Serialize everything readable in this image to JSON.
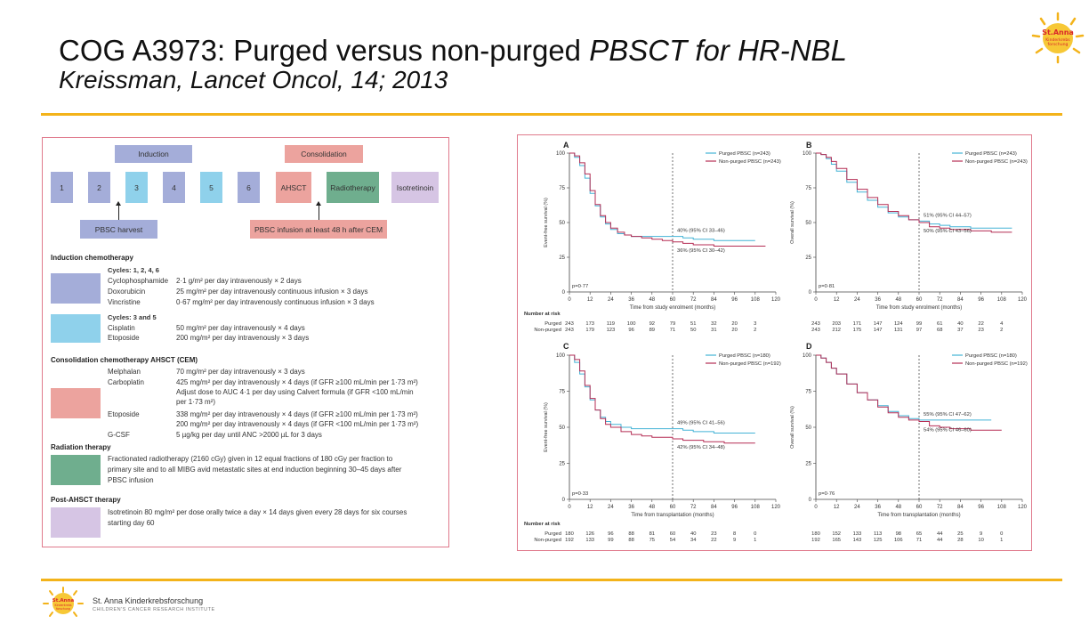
{
  "header": {
    "title_plain": "COG A3973: Purged versus non-purged ",
    "title_italic": "PBSCT for HR-NBL",
    "subtitle": "Kreissman, Lancet Oncol, 14;  2013"
  },
  "colors": {
    "accent": "#f3b31a",
    "purged": "#43b3d6",
    "nonpurged": "#b52d54",
    "panel_border": "#e07a8c"
  },
  "logo": {
    "text1": "St.Anna",
    "text2": "Kinderkrebs",
    "text3": "forschung"
  },
  "schema": {
    "induction_label": "Induction",
    "consolidation_label": "Consolidation",
    "cycles": [
      "1",
      "2",
      "3",
      "4",
      "5",
      "6"
    ],
    "ahsct": "AHSCT",
    "radiotherapy": "Radiotherapy",
    "isotretinoin": "Isotretinoin",
    "pbsc_harvest": "PBSC harvest",
    "pbsc_infusion": "PBSC infusion at least 48 h after CEM"
  },
  "regimen": {
    "induction_title": "Induction chemotherapy",
    "cycles_a": "Cycles: 1, 2, 4, 6",
    "drugs_a": [
      {
        "drug": "Cyclophosphamide",
        "dose": "2·1 g/m² per day intravenously × 2 days"
      },
      {
        "drug": "Doxorubicin",
        "dose": "25 mg/m² per day intravenously continuous infusion × 3 days"
      },
      {
        "drug": "Vincristine",
        "dose": "0·67 mg/m² per day intravenously continuous infusion × 3 days"
      }
    ],
    "cycles_b": "Cycles: 3 and 5",
    "drugs_b": [
      {
        "drug": "Cisplatin",
        "dose": "50 mg/m² per day intravenously × 4 days"
      },
      {
        "drug": "Etoposide",
        "dose": "200 mg/m² per day intravenously × 3 days"
      }
    ],
    "consolidation_title": "Consolidation chemotherapy AHSCT (CEM)",
    "cons_lines": [
      {
        "drug": "Melphalan",
        "dose": "70 mg/m² per day intravenously × 3 days"
      },
      {
        "drug": "Carboplatin",
        "dose": "425 mg/m² per day intravenously × 4 days (if GFR ≥100 mL/min per 1·73 m²)"
      },
      {
        "drug": "",
        "dose": "Adjust dose to AUC 4·1 per day using Calvert formula (if GFR <100 mL/min"
      },
      {
        "drug": "",
        "dose": "per 1·73 m²)"
      },
      {
        "drug": "Etoposide",
        "dose": "338 mg/m² per day intravenously × 4 days (if GFR ≥100 mL/min per 1·73 m²)"
      },
      {
        "drug": "",
        "dose": "200 mg/m² per day intravenously × 4 days (if GFR <100 mL/min per 1·73 m²)"
      },
      {
        "drug": "G-CSF",
        "dose": "5 µg/kg per day until ANC >2000 µL for 3 days"
      }
    ],
    "radiation_title": "Radiation therapy",
    "radiation_lines": [
      "Fractionated radiotherapy (2160 cGy) given in 12 equal fractions of 180 cGy per fraction to",
      "primary site and to all MIBG avid metastatic sites at end induction beginning 30–45 days after",
      "PBSC infusion"
    ],
    "post_title": "Post-AHSCT therapy",
    "post_lines": [
      "Isotretinoin 80 mg/m² per dose orally twice a day × 14 days given every 28 days for six courses",
      "starting day 60"
    ]
  },
  "chart_data": [
    {
      "type": "line",
      "panel": "A",
      "ylabel": "Event-free survival (%)",
      "xlabel": "Time from study enrolment (months)",
      "xlim": [
        0,
        120
      ],
      "ylim": [
        0,
        100
      ],
      "xticks": [
        "0",
        "12",
        "24",
        "36",
        "48",
        "60",
        "72",
        "84",
        "96",
        "108",
        "120"
      ],
      "yticks": [
        "0",
        "25",
        "50",
        "75",
        "100"
      ],
      "p_value": "p=0·77",
      "legend": [
        "Purged PBSC (n=243)",
        "Non-purged PBSC (n=243)"
      ],
      "annotations": [
        "40% (95% CI 33–46)",
        "36% (95% CI 30–42)"
      ],
      "series": [
        {
          "name": "Purged PBSC (n=243)",
          "x": [
            0,
            3,
            6,
            9,
            12,
            15,
            18,
            21,
            24,
            28,
            32,
            36,
            42,
            48,
            54,
            60,
            66,
            72,
            78,
            84,
            90,
            96,
            102,
            108
          ],
          "y": [
            100,
            97,
            91,
            82,
            71,
            62,
            54,
            49,
            45,
            42,
            41,
            40,
            40,
            40,
            40,
            40,
            39,
            38,
            38,
            37,
            37,
            37,
            37,
            37
          ]
        },
        {
          "name": "Non-purged PBSC (n=243)",
          "x": [
            0,
            3,
            6,
            9,
            12,
            15,
            18,
            21,
            24,
            28,
            32,
            36,
            42,
            48,
            54,
            60,
            66,
            72,
            78,
            84,
            90,
            96,
            102,
            108,
            114
          ],
          "y": [
            100,
            98,
            93,
            85,
            73,
            63,
            55,
            50,
            46,
            43,
            41,
            40,
            39,
            38,
            37,
            36,
            35,
            34,
            34,
            33,
            33,
            33,
            33,
            33,
            33
          ]
        }
      ],
      "at_risk_label": "Number at risk",
      "at_risk": {
        "Purged": [
          "243",
          "173",
          "119",
          "100",
          "92",
          "79",
          "51",
          "32",
          "20",
          "3"
        ],
        "Non-purged": [
          "243",
          "179",
          "123",
          "96",
          "89",
          "71",
          "50",
          "31",
          "20",
          "2"
        ]
      }
    },
    {
      "type": "line",
      "panel": "B",
      "ylabel": "Overall survival (%)",
      "xlabel": "Time from study enrolment (months)",
      "xlim": [
        0,
        120
      ],
      "ylim": [
        0,
        100
      ],
      "xticks": [
        "0",
        "12",
        "24",
        "36",
        "48",
        "60",
        "72",
        "84",
        "96",
        "108",
        "120"
      ],
      "yticks": [
        "0",
        "25",
        "50",
        "75",
        "100"
      ],
      "p_value": "p=0·81",
      "legend": [
        "Purged PBSC (n=243)",
        "Non-purged PBSC (n=243)"
      ],
      "annotations": [
        "51% (95% CI 44–57)",
        "50% (95% CI 43–56)"
      ],
      "series": [
        {
          "name": "Purged PBSC (n=243)",
          "x": [
            0,
            3,
            6,
            9,
            12,
            18,
            24,
            30,
            36,
            42,
            48,
            54,
            60,
            66,
            72,
            78,
            84,
            90,
            96,
            102,
            108,
            114
          ],
          "y": [
            100,
            99,
            96,
            92,
            87,
            79,
            72,
            66,
            61,
            57,
            54,
            52,
            51,
            49,
            48,
            47,
            47,
            46,
            46,
            46,
            46,
            46
          ]
        },
        {
          "name": "Non-purged PBSC (n=243)",
          "x": [
            0,
            3,
            6,
            9,
            12,
            18,
            24,
            30,
            36,
            42,
            48,
            54,
            60,
            66,
            72,
            78,
            84,
            90,
            96,
            102,
            108,
            114
          ],
          "y": [
            100,
            99,
            97,
            94,
            89,
            81,
            74,
            68,
            63,
            58,
            55,
            52,
            50,
            47,
            46,
            45,
            45,
            44,
            44,
            43,
            43,
            43
          ]
        }
      ],
      "at_risk_label": "Number at risk",
      "at_risk": {
        "Purged": [
          "243",
          "203",
          "171",
          "147",
          "124",
          "99",
          "61",
          "40",
          "22",
          "4"
        ],
        "Non-purged": [
          "243",
          "212",
          "175",
          "147",
          "131",
          "97",
          "68",
          "37",
          "23",
          "2"
        ]
      }
    },
    {
      "type": "line",
      "panel": "C",
      "ylabel": "Event-free survival (%)",
      "xlabel": "Time from transplantation (months)",
      "xlim": [
        0,
        120
      ],
      "ylim": [
        0,
        100
      ],
      "xticks": [
        "0",
        "12",
        "24",
        "36",
        "48",
        "60",
        "72",
        "84",
        "96",
        "108",
        "120"
      ],
      "yticks": [
        "0",
        "25",
        "50",
        "75",
        "100"
      ],
      "p_value": "p=0·33",
      "legend": [
        "Purged PBSC (n=180)",
        "Non-purged PBSC (n=192)"
      ],
      "annotations": [
        "49% (95% CI 41–56)",
        "42% (95% CI 34–48)"
      ],
      "series": [
        {
          "name": "Purged PBSC (n=180)",
          "x": [
            0,
            3,
            6,
            9,
            12,
            15,
            18,
            21,
            24,
            30,
            36,
            42,
            48,
            54,
            60,
            66,
            72,
            78,
            84,
            90,
            96,
            102,
            108
          ],
          "y": [
            100,
            95,
            87,
            78,
            69,
            62,
            57,
            54,
            52,
            50,
            49,
            49,
            49,
            49,
            49,
            48,
            47,
            47,
            46,
            46,
            46,
            46,
            46
          ]
        },
        {
          "name": "Non-purged PBSC (n=192)",
          "x": [
            0,
            3,
            6,
            9,
            12,
            15,
            18,
            21,
            24,
            30,
            36,
            42,
            48,
            54,
            60,
            66,
            72,
            78,
            84,
            90,
            96,
            102,
            108
          ],
          "y": [
            100,
            97,
            89,
            79,
            70,
            62,
            56,
            52,
            50,
            47,
            45,
            44,
            43,
            43,
            42,
            41,
            41,
            40,
            40,
            39,
            39,
            39,
            39
          ]
        }
      ],
      "at_risk_label": "Number at risk",
      "at_risk": {
        "Purged": [
          "180",
          "126",
          "96",
          "88",
          "81",
          "60",
          "40",
          "23",
          "8",
          "0"
        ],
        "Non-purged": [
          "192",
          "133",
          "99",
          "88",
          "75",
          "54",
          "34",
          "22",
          "9",
          "1"
        ]
      }
    },
    {
      "type": "line",
      "panel": "D",
      "ylabel": "Overall survival (%)",
      "xlabel": "Time from transplantation (months)",
      "xlim": [
        0,
        120
      ],
      "ylim": [
        0,
        100
      ],
      "xticks": [
        "0",
        "12",
        "24",
        "36",
        "48",
        "60",
        "72",
        "84",
        "96",
        "108",
        "120"
      ],
      "yticks": [
        "0",
        "25",
        "50",
        "75",
        "100"
      ],
      "p_value": "p=0·76",
      "legend": [
        "Purged PBSC (n=180)",
        "Non-purged PBSC (n=192)"
      ],
      "annotations": [
        "55% (95% CI 47–62)",
        "54% (95% CI 46–60)"
      ],
      "series": [
        {
          "name": "Purged PBSC (n=180)",
          "x": [
            0,
            3,
            6,
            9,
            12,
            18,
            24,
            30,
            36,
            42,
            48,
            54,
            60,
            66,
            72,
            78,
            84,
            90,
            96,
            102
          ],
          "y": [
            100,
            98,
            95,
            91,
            87,
            80,
            74,
            69,
            65,
            61,
            58,
            56,
            55,
            55,
            55,
            55,
            55,
            55,
            55,
            55
          ]
        },
        {
          "name": "Non-purged PBSC (n=192)",
          "x": [
            0,
            3,
            6,
            9,
            12,
            18,
            24,
            30,
            36,
            42,
            48,
            54,
            60,
            66,
            72,
            78,
            84,
            90,
            96,
            102,
            108
          ],
          "y": [
            100,
            98,
            95,
            91,
            87,
            80,
            74,
            69,
            64,
            60,
            57,
            55,
            54,
            51,
            50,
            49,
            49,
            48,
            48,
            48,
            48
          ]
        }
      ],
      "at_risk_label": "Number at risk",
      "at_risk": {
        "Purged": [
          "180",
          "152",
          "133",
          "113",
          "98",
          "65",
          "44",
          "25",
          "9",
          "0"
        ],
        "Non-purged": [
          "192",
          "165",
          "143",
          "125",
          "106",
          "71",
          "44",
          "28",
          "10",
          "1"
        ]
      }
    }
  ],
  "footer": {
    "name": "St. Anna Kinderkrebsforschung",
    "subname": "CHILDREN'S CANCER RESEARCH INSTITUTE"
  }
}
